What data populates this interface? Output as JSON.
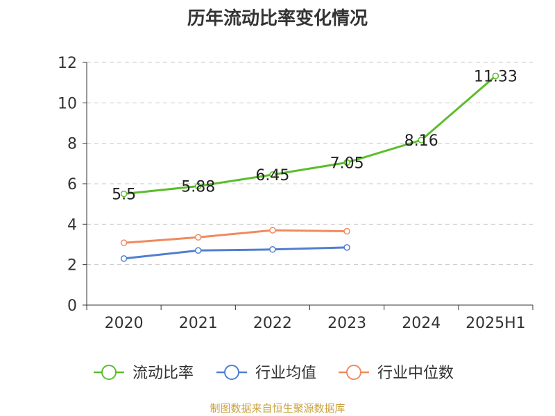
{
  "chart_data": {
    "type": "line",
    "title": "历年流动比率变化情况",
    "categories": [
      "2020",
      "2021",
      "2022",
      "2023",
      "2024",
      "2025H1"
    ],
    "ylim": [
      0,
      12
    ],
    "yticks": [
      0,
      2,
      4,
      6,
      8,
      10,
      12
    ],
    "grid": true,
    "legend_position": "bottom",
    "series": [
      {
        "name": "流动比率",
        "color": "#5bbd2b",
        "values": [
          5.5,
          5.88,
          6.45,
          7.05,
          8.16,
          11.33
        ],
        "labels": [
          "5.5",
          "5.88",
          "6.45",
          "7.05",
          "8.16",
          "11.33"
        ]
      },
      {
        "name": "行业均值",
        "color": "#4f7fd0",
        "values": [
          2.3,
          2.7,
          2.75,
          2.85,
          null,
          null
        ]
      },
      {
        "name": "行业中位数",
        "color": "#f08a5d",
        "values": [
          3.08,
          3.35,
          3.7,
          3.65,
          null,
          null
        ]
      }
    ]
  },
  "footer": {
    "source": "制图数据来自恒生聚源数据库"
  }
}
